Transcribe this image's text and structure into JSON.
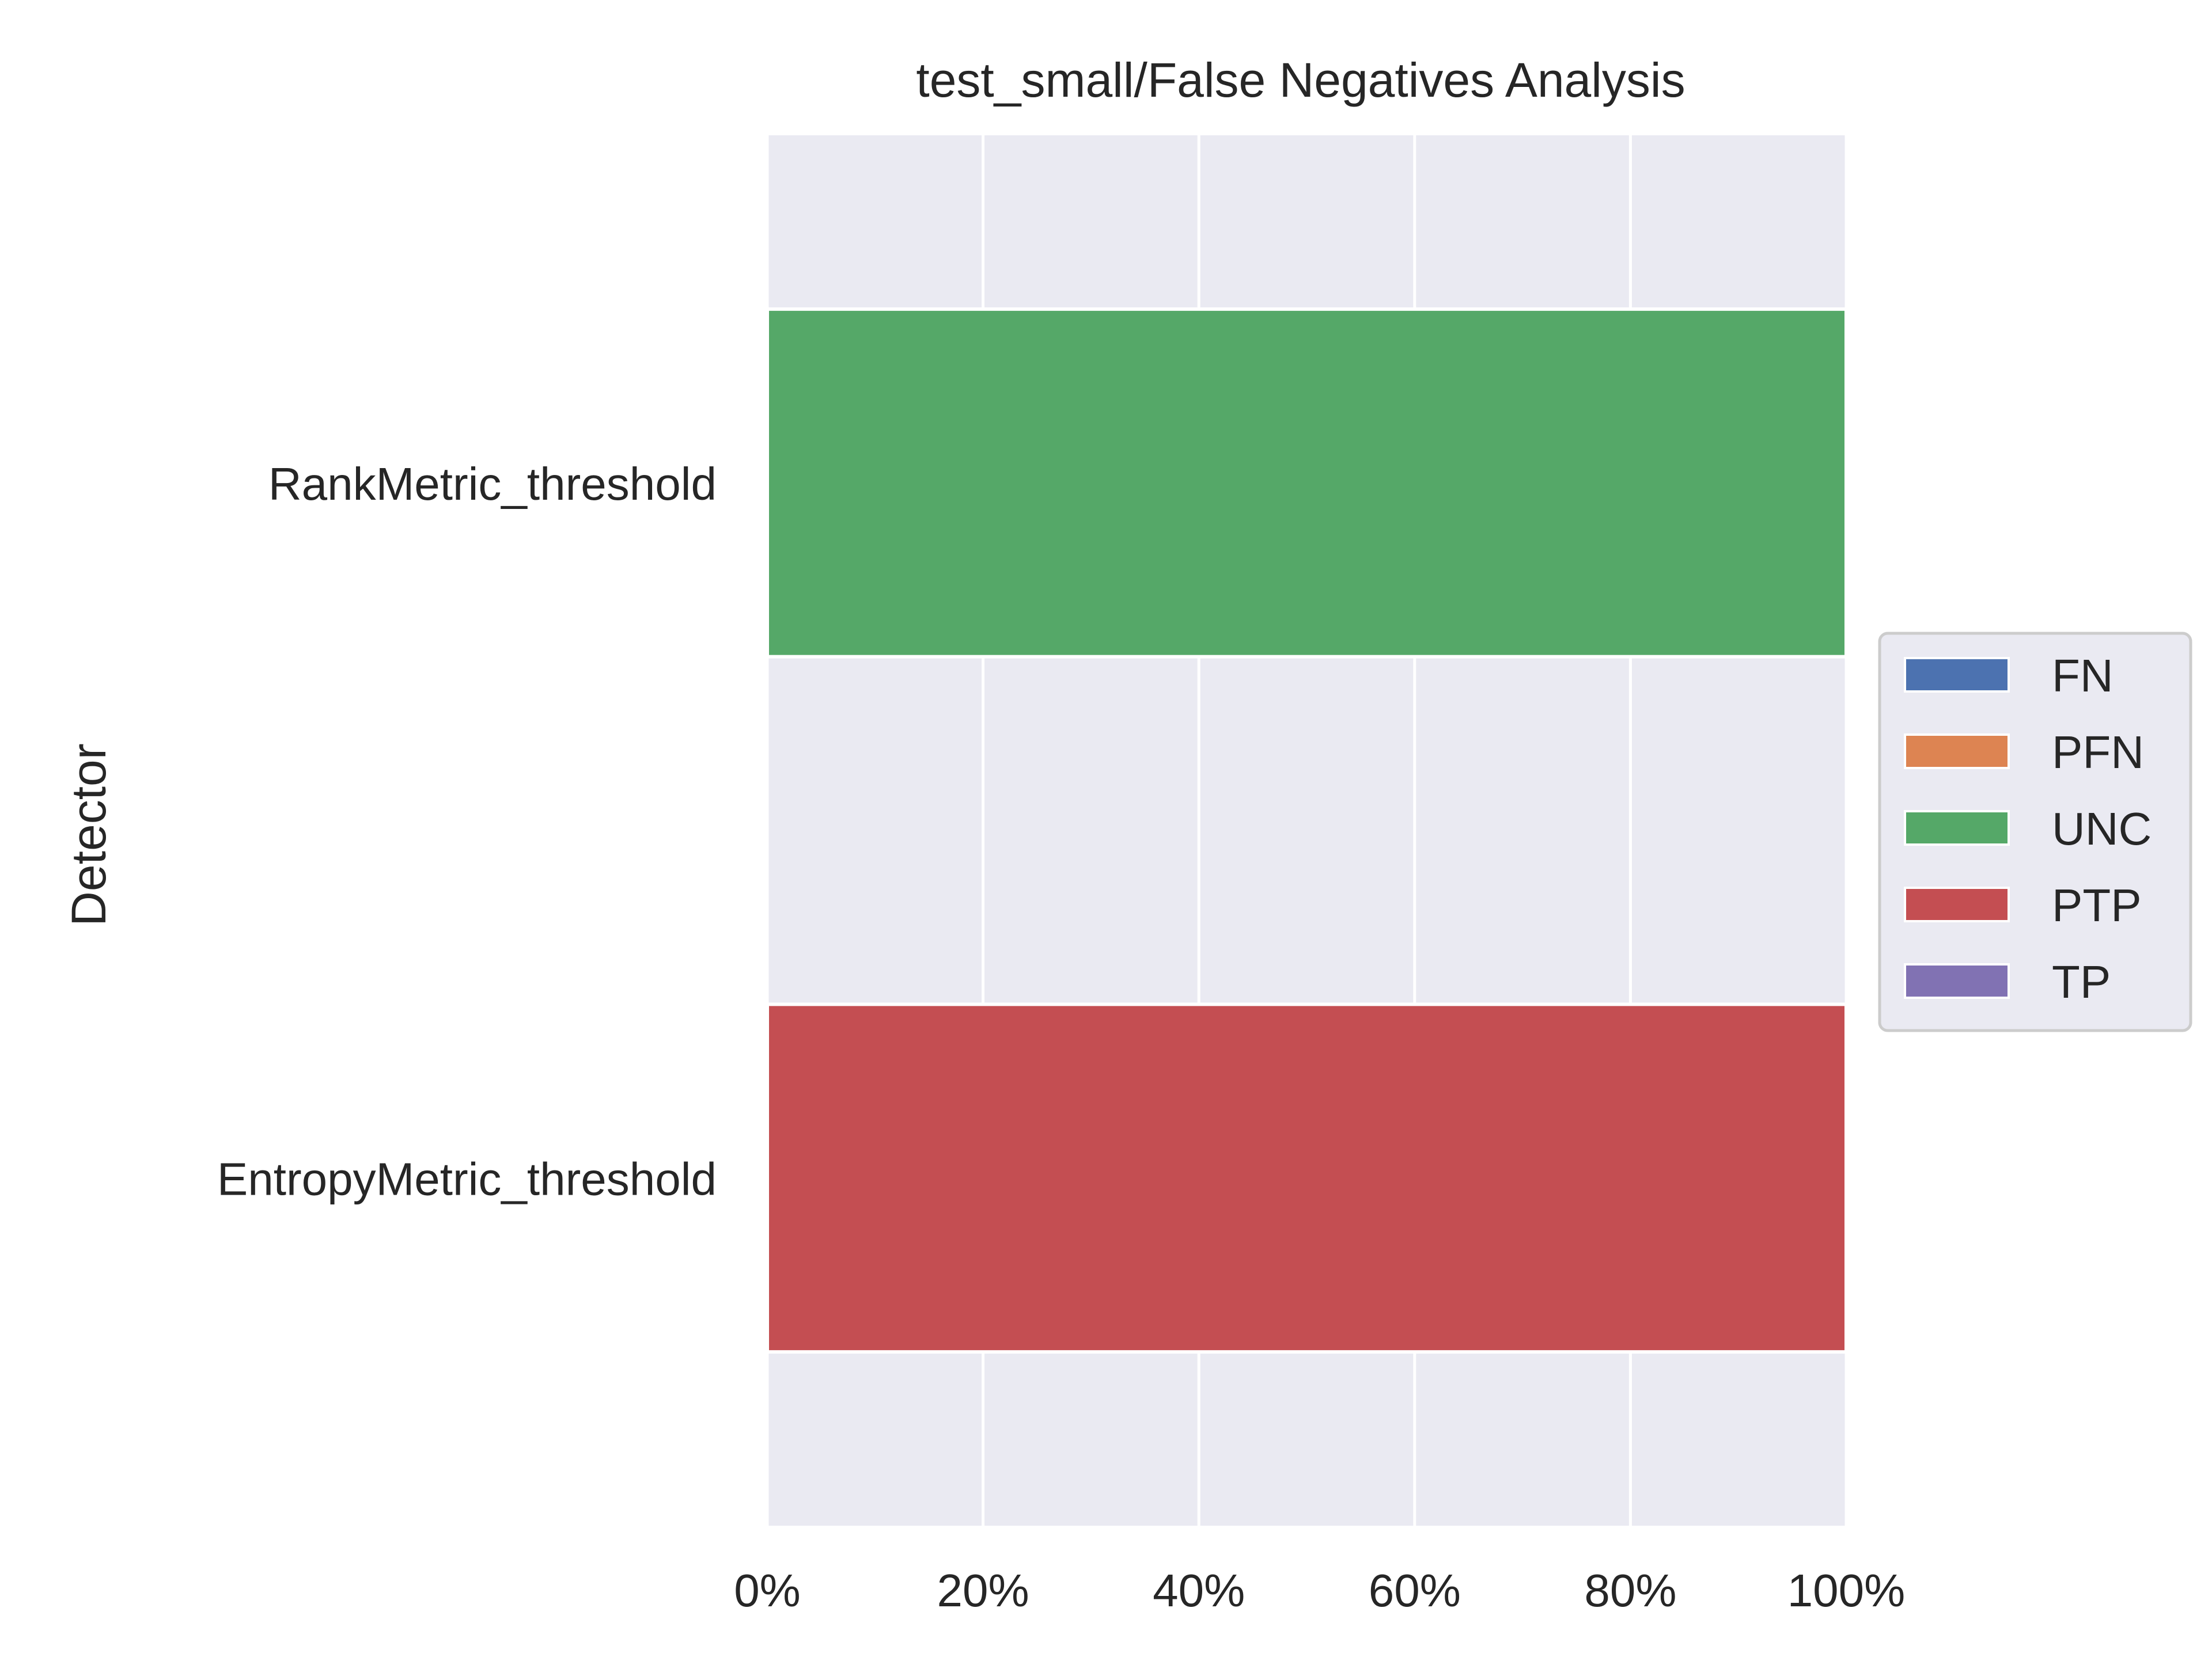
{
  "chart_data": {
    "type": "bar",
    "orientation": "horizontal",
    "stacked": true,
    "title": "test_small/False Negatives Analysis",
    "xlabel": "",
    "ylabel": "Detector",
    "categories": [
      "RankMetric_threshold",
      "EntropyMetric_threshold"
    ],
    "xlim": [
      0,
      100
    ],
    "x_ticks": [
      "0%",
      "20%",
      "40%",
      "60%",
      "80%",
      "100%"
    ],
    "x_tick_values": [
      0,
      20,
      40,
      60,
      80,
      100
    ],
    "series": [
      {
        "name": "FN",
        "color": "#4c72b0",
        "values": [
          0,
          0
        ]
      },
      {
        "name": "PFN",
        "color": "#dd8452",
        "values": [
          0,
          0
        ]
      },
      {
        "name": "UNC",
        "color": "#55a868",
        "values": [
          100,
          0
        ]
      },
      {
        "name": "PTP",
        "color": "#c44e52",
        "values": [
          0,
          100
        ]
      },
      {
        "name": "TP",
        "color": "#8172b3",
        "values": [
          0,
          0
        ]
      }
    ],
    "grid": true,
    "legend_position": "center-right outside",
    "plot_background": "#eaeaf2"
  }
}
